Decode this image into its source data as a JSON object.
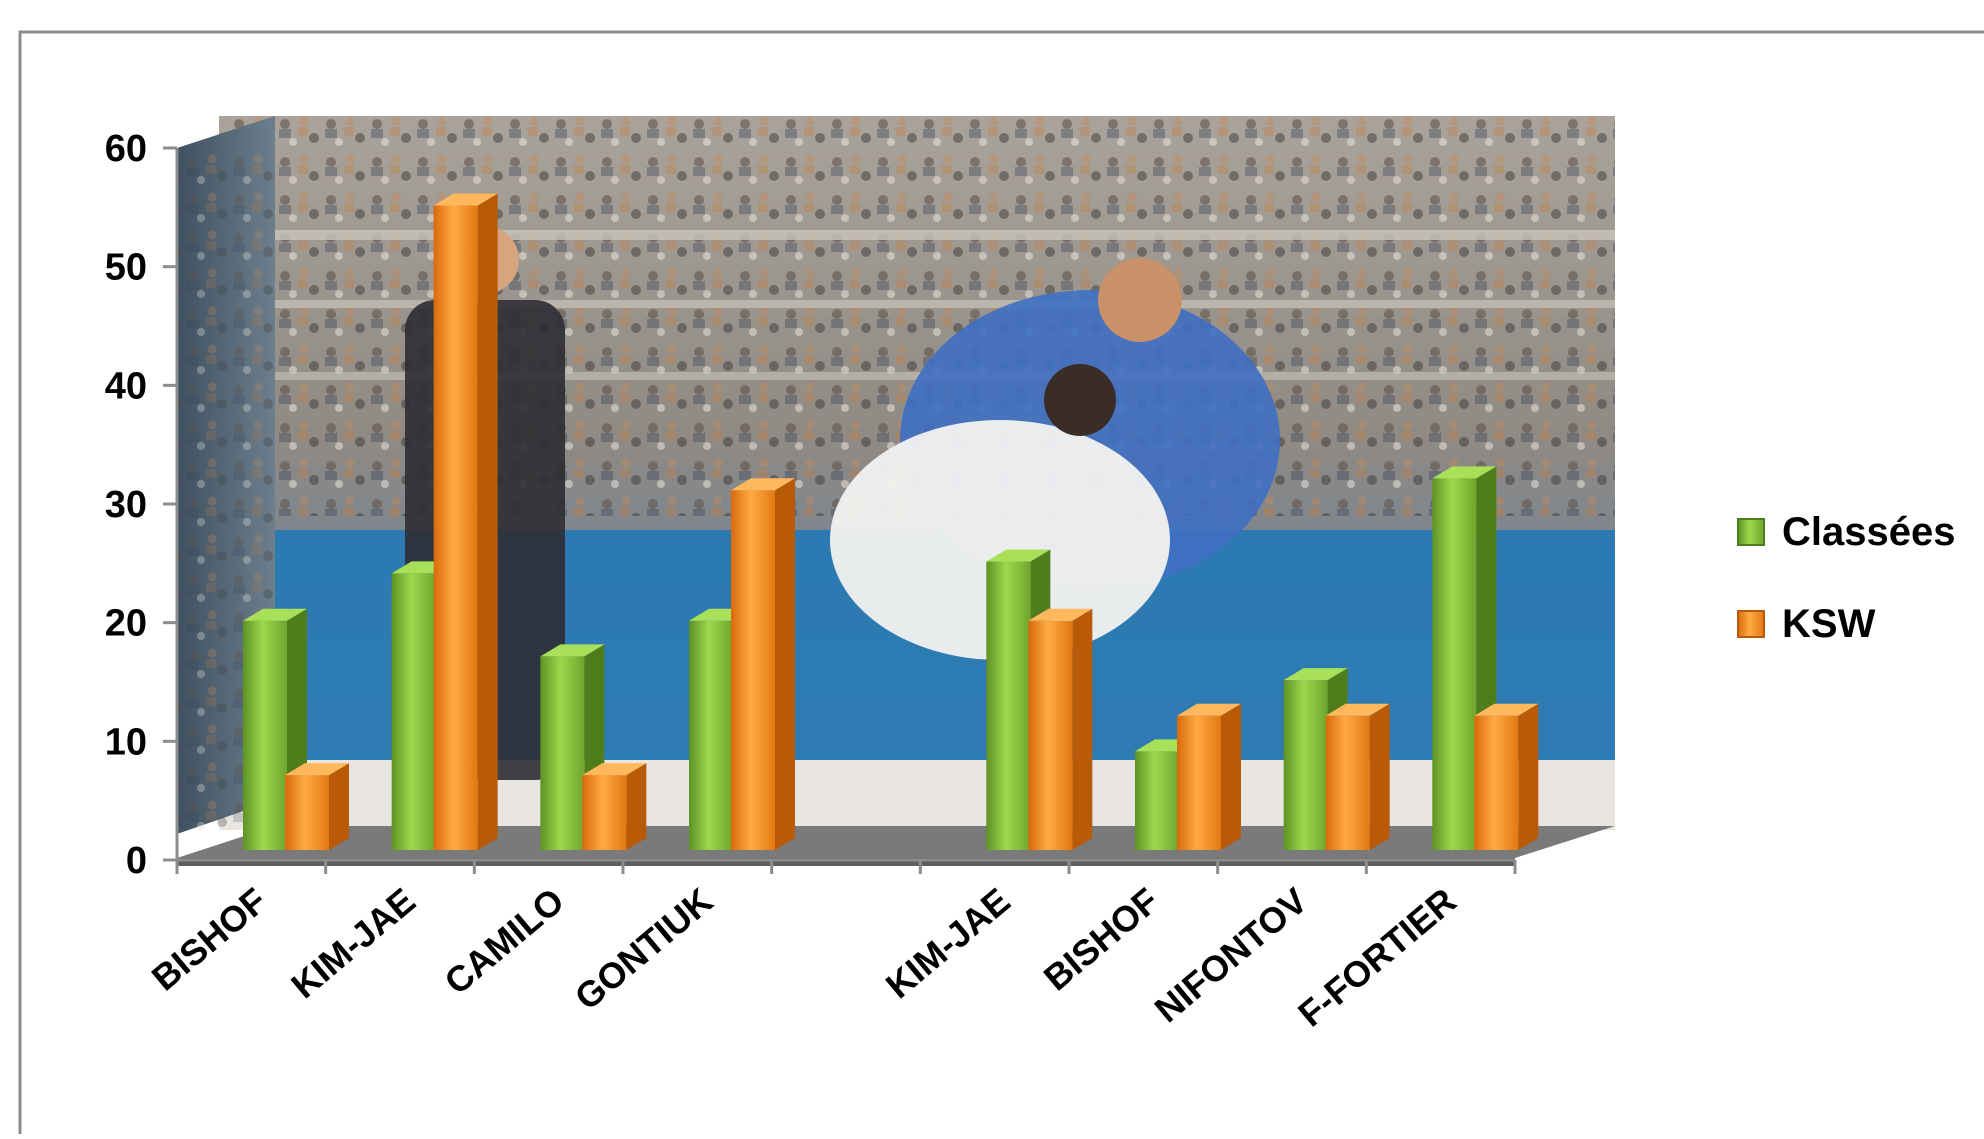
{
  "chart_data": {
    "type": "bar",
    "title": "",
    "xlabel": "",
    "ylabel": "",
    "categories": [
      "BISHOF",
      "KIM-JAE",
      "CAMILO",
      "GONTIUK",
      "",
      "KIM-JAE",
      "BISHOF",
      "NIFONTOV",
      "F-FORTIER"
    ],
    "series": [
      {
        "name": "Classées",
        "values": [
          21,
          25,
          18,
          21,
          null,
          26,
          10,
          16,
          33
        ]
      },
      {
        "name": "KSW",
        "values": [
          8,
          56,
          8,
          32,
          null,
          21,
          13,
          13,
          13
        ]
      }
    ],
    "ylim": [
      0,
      60
    ],
    "yticks": [
      "0",
      "10",
      "20",
      "30",
      "40",
      "50",
      "60"
    ],
    "grid": false,
    "legend_position": "right",
    "colors": {
      "Classées": "#7cb733",
      "KSW": "#f08c1e",
      "background_photo": "judo-match-photo"
    }
  }
}
